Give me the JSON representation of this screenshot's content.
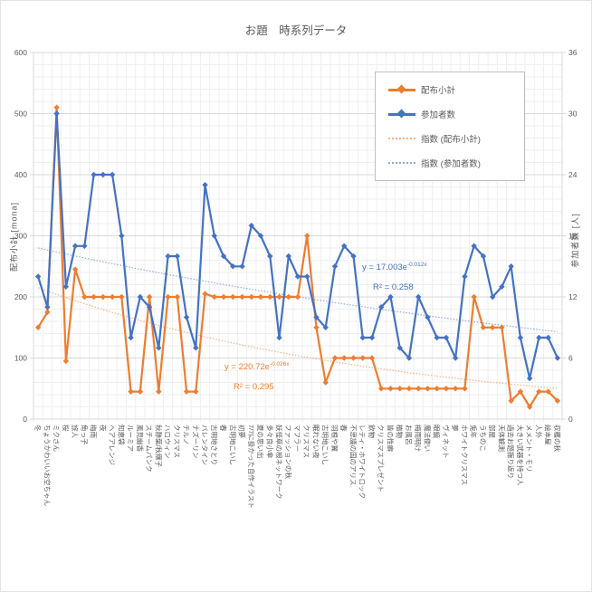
{
  "title": "お題　時系列データ",
  "colors": {
    "series_orange": "#ED7D31",
    "series_blue": "#4472C4",
    "trend_orange": "#F4B183",
    "trend_blue": "#8FAADC",
    "grid_major": "#D9D9D9",
    "grid_minor": "#EFEFEF",
    "text": "#595959",
    "legend_border": "#BFBFBF",
    "background": "#FFFFFF"
  },
  "left_axis_title": "配布小計 [mona]",
  "right_axis_title": "参加者数 [人]",
  "legend": {
    "items": [
      {
        "label": "配布小計",
        "color": "#ED7D31",
        "style": "solid"
      },
      {
        "label": "参加者数",
        "color": "#4472C4",
        "style": "solid"
      },
      {
        "label": "指数 (配布小計)",
        "color": "#F4B183",
        "style": "dotted"
      },
      {
        "label": "指数 (参加者数)",
        "color": "#8FAADC",
        "style": "dotted"
      }
    ]
  },
  "annotations": {
    "blue_trend": {
      "prefix": "y = 17.003e",
      "exp": "-0.012x",
      "r2": "R² = 0.258"
    },
    "orange_trend": {
      "prefix": "y = 220.72e",
      "exp": "-0.026x",
      "r2": "R² = 0.295"
    }
  },
  "chart_data": {
    "type": "line",
    "title": "お題　時系列データ",
    "grid": true,
    "legend_position": "top-right",
    "categories": [
      "冬",
      "ちょうかわいいお空ちゃん",
      "ミクさん",
      "桜",
      "旅人",
      "角っ子",
      "梅雨",
      "夜",
      "ヘアアレンジ",
      "知恵袋",
      "ルーミア",
      "風見幽香",
      "スチームパンク",
      "秋静葉/秋穣子",
      "ハロウィン",
      "クリスマス",
      "チルノ",
      "ナズーリン",
      "バレンタイン",
      "古明地さとり",
      "春",
      "古明地こいし",
      "初夢",
      "7/7に掛かった自作イラスト",
      "夏の思い出",
      "多々良小傘",
      "妖怪草の根ネットワーク",
      "ファッションの秋",
      "マフラー",
      "クリスマス",
      "眠れない夜",
      "古明地こいし",
      "羽根や翼",
      "春",
      "不思議の国のアリス",
      "レティ・ホワイトロック",
      "飲物",
      "クリスマスプレゼント",
      "皆の性癖",
      "植物",
      "お風呂",
      "梅雨明け",
      "魔法使い",
      "眼鏡",
      "ヴィネット",
      "夢",
      "ホワイトクリスマス",
      "兎年",
      "うちのこ",
      "部屋",
      "天体観測",
      "過去お題振り返り",
      "大きい武器を持つ人",
      "メメント・モリ",
      "人外",
      "絵本屋",
      "収穫の秋"
    ],
    "series": [
      {
        "name": "配布小計",
        "axis": "left",
        "color": "#ED7D31",
        "values": [
          150,
          175,
          510,
          95,
          245,
          200,
          200,
          200,
          200,
          200,
          45,
          45,
          200,
          45,
          200,
          200,
          45,
          45,
          205,
          200,
          200,
          200,
          200,
          200,
          200,
          200,
          200,
          200,
          200,
          300,
          150,
          60,
          100,
          100,
          100,
          100,
          100,
          50,
          50,
          50,
          50,
          50,
          50,
          50,
          50,
          50,
          50,
          200,
          150,
          150,
          150,
          30,
          45,
          20,
          45,
          45,
          30
        ]
      },
      {
        "name": "参加者数",
        "axis": "right",
        "color": "#4472C4",
        "values": [
          14,
          11,
          30,
          13,
          17,
          17,
          24,
          24,
          24,
          18,
          8,
          12,
          11,
          7,
          16,
          16,
          10,
          7,
          23,
          18,
          16,
          15,
          15,
          19,
          18,
          16,
          8,
          16,
          14,
          14,
          10,
          9,
          15,
          17,
          16,
          8,
          8,
          11,
          12,
          7,
          6,
          12,
          10,
          8,
          8,
          6,
          14,
          17,
          16,
          12,
          13,
          15,
          8,
          4,
          8,
          8,
          6
        ]
      }
    ],
    "trendlines": [
      {
        "name": "指数 (配布小計)",
        "target": "配布小計",
        "axis": "left",
        "type": "exponential",
        "a": 220.72,
        "b": -0.026,
        "equation": "y = 220.72e^-0.026x",
        "r2": 0.295,
        "color": "#F4B183"
      },
      {
        "name": "指数 (参加者数)",
        "target": "参加者数",
        "axis": "right",
        "type": "exponential",
        "a": 17.003,
        "b": -0.012,
        "equation": "y = 17.003e^-0.012x",
        "r2": 0.258,
        "color": "#8FAADC"
      }
    ],
    "left_axis": {
      "title": "配布小計 [mona]",
      "min": 0,
      "max": 600,
      "step": 100,
      "minor_step": 20
    },
    "right_axis": {
      "title": "参加者数 [人]",
      "min": 0,
      "max": 36,
      "step": 6
    }
  }
}
